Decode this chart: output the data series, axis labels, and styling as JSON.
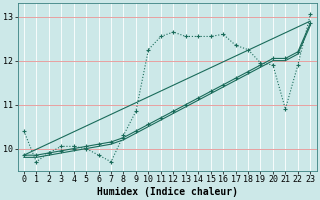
{
  "xlabel": "Humidex (Indice chaleur)",
  "bg_color": "#cce8e8",
  "line_color": "#1a6b5a",
  "grid_color_v": "#ffffff",
  "grid_color_h": "#e8a0a0",
  "xlim": [
    -0.5,
    23.5
  ],
  "ylim": [
    9.5,
    13.3
  ],
  "yticks": [
    10,
    11,
    12,
    13
  ],
  "xticks": [
    0,
    1,
    2,
    3,
    4,
    5,
    6,
    7,
    8,
    9,
    10,
    11,
    12,
    13,
    14,
    15,
    16,
    17,
    18,
    19,
    20,
    21,
    22,
    23
  ],
  "line1_x": [
    0,
    1,
    2,
    3,
    4,
    5,
    6,
    7,
    8,
    9,
    10,
    11,
    12,
    13,
    14,
    15,
    16,
    17,
    18,
    19,
    20,
    21,
    22,
    23
  ],
  "line1_y": [
    10.4,
    9.7,
    9.9,
    10.05,
    10.05,
    10.0,
    9.85,
    9.7,
    10.3,
    10.85,
    12.25,
    12.55,
    12.65,
    12.55,
    12.55,
    12.55,
    12.6,
    12.35,
    12.25,
    11.95,
    11.9,
    10.9,
    11.9,
    13.05
  ],
  "line2_x": [
    0,
    1,
    2,
    3,
    4,
    5,
    6,
    7,
    8,
    9,
    10,
    11,
    12,
    13,
    14,
    15,
    16,
    17,
    18,
    19,
    20,
    21,
    22,
    23
  ],
  "line2_y": [
    9.85,
    9.85,
    9.9,
    9.95,
    10.0,
    10.05,
    10.1,
    10.15,
    10.25,
    10.4,
    10.55,
    10.7,
    10.85,
    11.0,
    11.15,
    11.3,
    11.45,
    11.6,
    11.75,
    11.9,
    12.05,
    12.05,
    12.2,
    12.85
  ],
  "line3_x": [
    0,
    1,
    2,
    3,
    4,
    5,
    6,
    7,
    8,
    9,
    10,
    11,
    12,
    13,
    14,
    15,
    16,
    17,
    18,
    19,
    20,
    21,
    22,
    23
  ],
  "line3_y": [
    9.8,
    9.8,
    9.85,
    9.9,
    9.95,
    10.0,
    10.05,
    10.1,
    10.2,
    10.35,
    10.5,
    10.65,
    10.8,
    10.95,
    11.1,
    11.25,
    11.4,
    11.55,
    11.7,
    11.85,
    12.0,
    12.0,
    12.15,
    12.8
  ],
  "line4_x": [
    0,
    23
  ],
  "line4_y": [
    9.85,
    12.9
  ],
  "font_size_label": 7,
  "font_size_tick": 6,
  "marker_size": 2.5,
  "line_width": 0.8
}
